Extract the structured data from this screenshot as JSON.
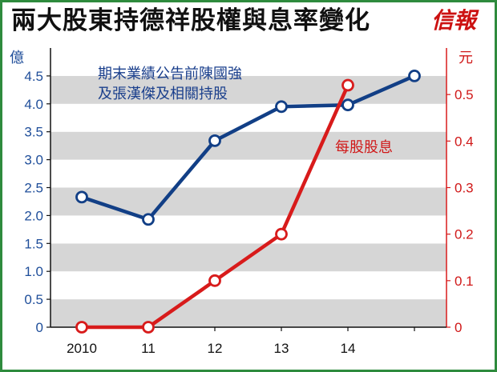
{
  "header": {
    "title": "兩大股東持德祥股權與息率變化",
    "logo_text": "信報"
  },
  "colors": {
    "frame": "#2e8b3d",
    "band_gray": "#d6d6d6",
    "band_white": "#ffffff",
    "shareholding_line": "#123f86",
    "dividend_line": "#d81b1b",
    "left_axis_text": "#1f4e9a",
    "right_axis_text": "#d01818"
  },
  "chart_data": {
    "type": "line",
    "title": "兩大股東持德祥股權與息率變化",
    "categories": [
      "2010",
      "11",
      "12",
      "13",
      "14",
      ""
    ],
    "left_axis": {
      "unit": "億",
      "ylim": [
        0,
        5
      ],
      "ticks": [
        "0",
        "0.5",
        "1.0",
        "1.5",
        "2.0",
        "2.5",
        "3.0",
        "3.5",
        "4.0",
        "4.5"
      ]
    },
    "right_axis": {
      "unit": "元",
      "ylim": [
        0,
        0.6
      ],
      "ticks": [
        "0",
        "0.1",
        "0.2",
        "0.3",
        "0.4",
        "0.5"
      ]
    },
    "series": [
      {
        "name": "期末業績公告前陳國強及張漢傑及相關持股",
        "name_lines": [
          "期末業績公告前陳國強",
          "及張漢傑及相關持股"
        ],
        "axis": "left",
        "color": "#123f86",
        "x": [
          0,
          1,
          2,
          3,
          4,
          5
        ],
        "values": [
          2.33,
          1.93,
          3.34,
          3.95,
          3.98,
          4.5
        ]
      },
      {
        "name": "每股股息",
        "axis": "right",
        "color": "#d81b1b",
        "x": [
          0,
          1,
          2,
          3,
          4
        ],
        "values": [
          0,
          0,
          0.1,
          0.2,
          0.52
        ]
      }
    ],
    "background": "alternating gray and white horizontal bands",
    "grid": false
  }
}
